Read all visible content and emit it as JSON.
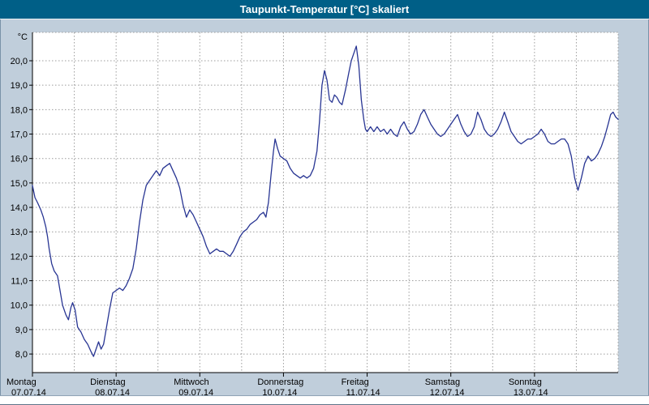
{
  "window": {
    "title": "Taupunkt-Temperatur [°C] skaliert"
  },
  "colors": {
    "titlebar": "#005f87",
    "background": "#c0cedb",
    "plot_bg": "#ffffff",
    "grid": "#9c9c9c",
    "axis": "#000000",
    "line": "#283593"
  },
  "chart_data": {
    "type": "line",
    "title": "Taupunkt-Temperatur [°C] skaliert",
    "y_unit": "°C",
    "ylim": [
      7.24,
      21.16
    ],
    "xlim_days": [
      0,
      7
    ],
    "grid": true,
    "legend": "none",
    "ytick_values": [
      8,
      9,
      10,
      11,
      12,
      13,
      14,
      15,
      16,
      17,
      18,
      19,
      20
    ],
    "ytick_labels": [
      "8,0",
      "9,0",
      "10,0",
      "11,0",
      "12,0",
      "13,0",
      "14,0",
      "15,0",
      "16,0",
      "17,0",
      "18,0",
      "19,0",
      "20,0"
    ],
    "x_axis": {
      "minor_grid_interval_days": 0.5,
      "days": [
        {
          "name": "Montag",
          "date": "07.07.14"
        },
        {
          "name": "Dienstag",
          "date": "08.07.14"
        },
        {
          "name": "Mittwoch",
          "date": "09.07.14"
        },
        {
          "name": "Donnerstag",
          "date": "10.07.14"
        },
        {
          "name": "Freitag",
          "date": "11.07.14"
        },
        {
          "name": "Samstag",
          "date": "12.07.14"
        },
        {
          "name": "Sonntag",
          "date": "13.07.14"
        }
      ]
    },
    "series": [
      {
        "name": "taupunkt-temperatur",
        "color": "#283593",
        "points": [
          [
            0.0,
            14.9
          ],
          [
            0.03,
            14.4
          ],
          [
            0.06,
            14.2
          ],
          [
            0.1,
            13.9
          ],
          [
            0.13,
            13.6
          ],
          [
            0.16,
            13.2
          ],
          [
            0.18,
            12.8
          ],
          [
            0.2,
            12.3
          ],
          [
            0.23,
            11.7
          ],
          [
            0.26,
            11.4
          ],
          [
            0.3,
            11.2
          ],
          [
            0.33,
            10.6
          ],
          [
            0.36,
            10.0
          ],
          [
            0.4,
            9.6
          ],
          [
            0.43,
            9.4
          ],
          [
            0.46,
            9.9
          ],
          [
            0.48,
            10.1
          ],
          [
            0.51,
            9.8
          ],
          [
            0.54,
            9.1
          ],
          [
            0.58,
            8.9
          ],
          [
            0.62,
            8.6
          ],
          [
            0.66,
            8.4
          ],
          [
            0.7,
            8.1
          ],
          [
            0.73,
            7.9
          ],
          [
            0.76,
            8.2
          ],
          [
            0.79,
            8.5
          ],
          [
            0.82,
            8.2
          ],
          [
            0.85,
            8.4
          ],
          [
            0.88,
            9.0
          ],
          [
            0.92,
            9.8
          ],
          [
            0.96,
            10.5
          ],
          [
            1.0,
            10.6
          ],
          [
            1.04,
            10.7
          ],
          [
            1.08,
            10.6
          ],
          [
            1.12,
            10.8
          ],
          [
            1.16,
            11.1
          ],
          [
            1.2,
            11.5
          ],
          [
            1.24,
            12.3
          ],
          [
            1.28,
            13.4
          ],
          [
            1.32,
            14.3
          ],
          [
            1.36,
            14.9
          ],
          [
            1.4,
            15.1
          ],
          [
            1.44,
            15.3
          ],
          [
            1.48,
            15.5
          ],
          [
            1.52,
            15.3
          ],
          [
            1.56,
            15.6
          ],
          [
            1.6,
            15.7
          ],
          [
            1.64,
            15.8
          ],
          [
            1.68,
            15.5
          ],
          [
            1.72,
            15.2
          ],
          [
            1.76,
            14.8
          ],
          [
            1.8,
            14.1
          ],
          [
            1.84,
            13.6
          ],
          [
            1.88,
            13.9
          ],
          [
            1.92,
            13.7
          ],
          [
            1.96,
            13.4
          ],
          [
            2.0,
            13.1
          ],
          [
            2.04,
            12.8
          ],
          [
            2.08,
            12.4
          ],
          [
            2.12,
            12.1
          ],
          [
            2.16,
            12.2
          ],
          [
            2.2,
            12.3
          ],
          [
            2.24,
            12.2
          ],
          [
            2.28,
            12.2
          ],
          [
            2.32,
            12.1
          ],
          [
            2.36,
            12.0
          ],
          [
            2.4,
            12.2
          ],
          [
            2.44,
            12.5
          ],
          [
            2.48,
            12.8
          ],
          [
            2.52,
            13.0
          ],
          [
            2.56,
            13.1
          ],
          [
            2.6,
            13.3
          ],
          [
            2.64,
            13.4
          ],
          [
            2.68,
            13.5
          ],
          [
            2.72,
            13.7
          ],
          [
            2.76,
            13.8
          ],
          [
            2.79,
            13.6
          ],
          [
            2.82,
            14.2
          ],
          [
            2.85,
            15.3
          ],
          [
            2.88,
            16.3
          ],
          [
            2.9,
            16.8
          ],
          [
            2.93,
            16.4
          ],
          [
            2.96,
            16.1
          ],
          [
            3.0,
            16.0
          ],
          [
            3.04,
            15.9
          ],
          [
            3.08,
            15.6
          ],
          [
            3.12,
            15.4
          ],
          [
            3.16,
            15.3
          ],
          [
            3.2,
            15.2
          ],
          [
            3.24,
            15.3
          ],
          [
            3.28,
            15.2
          ],
          [
            3.32,
            15.3
          ],
          [
            3.36,
            15.6
          ],
          [
            3.4,
            16.3
          ],
          [
            3.43,
            17.5
          ],
          [
            3.46,
            19.0
          ],
          [
            3.49,
            19.6
          ],
          [
            3.52,
            19.2
          ],
          [
            3.55,
            18.4
          ],
          [
            3.58,
            18.3
          ],
          [
            3.61,
            18.6
          ],
          [
            3.64,
            18.5
          ],
          [
            3.67,
            18.3
          ],
          [
            3.7,
            18.2
          ],
          [
            3.74,
            18.8
          ],
          [
            3.78,
            19.5
          ],
          [
            3.81,
            20.0
          ],
          [
            3.84,
            20.3
          ],
          [
            3.87,
            20.6
          ],
          [
            3.9,
            19.8
          ],
          [
            3.93,
            18.4
          ],
          [
            3.96,
            17.6
          ],
          [
            3.98,
            17.2
          ],
          [
            4.0,
            17.1
          ],
          [
            4.04,
            17.3
          ],
          [
            4.08,
            17.1
          ],
          [
            4.12,
            17.3
          ],
          [
            4.16,
            17.1
          ],
          [
            4.2,
            17.2
          ],
          [
            4.24,
            17.0
          ],
          [
            4.28,
            17.2
          ],
          [
            4.32,
            17.0
          ],
          [
            4.36,
            16.9
          ],
          [
            4.4,
            17.3
          ],
          [
            4.44,
            17.5
          ],
          [
            4.48,
            17.2
          ],
          [
            4.52,
            17.0
          ],
          [
            4.56,
            17.1
          ],
          [
            4.6,
            17.4
          ],
          [
            4.64,
            17.8
          ],
          [
            4.68,
            18.0
          ],
          [
            4.72,
            17.7
          ],
          [
            4.76,
            17.4
          ],
          [
            4.8,
            17.2
          ],
          [
            4.84,
            17.0
          ],
          [
            4.88,
            16.9
          ],
          [
            4.92,
            17.0
          ],
          [
            4.96,
            17.2
          ],
          [
            5.0,
            17.4
          ],
          [
            5.04,
            17.6
          ],
          [
            5.08,
            17.8
          ],
          [
            5.12,
            17.4
          ],
          [
            5.16,
            17.1
          ],
          [
            5.2,
            16.9
          ],
          [
            5.24,
            17.0
          ],
          [
            5.28,
            17.3
          ],
          [
            5.32,
            17.9
          ],
          [
            5.36,
            17.6
          ],
          [
            5.4,
            17.2
          ],
          [
            5.44,
            17.0
          ],
          [
            5.48,
            16.9
          ],
          [
            5.52,
            17.0
          ],
          [
            5.56,
            17.2
          ],
          [
            5.6,
            17.5
          ],
          [
            5.64,
            17.9
          ],
          [
            5.68,
            17.5
          ],
          [
            5.72,
            17.1
          ],
          [
            5.76,
            16.9
          ],
          [
            5.8,
            16.7
          ],
          [
            5.84,
            16.6
          ],
          [
            5.88,
            16.7
          ],
          [
            5.92,
            16.8
          ],
          [
            5.96,
            16.8
          ],
          [
            6.0,
            16.9
          ],
          [
            6.04,
            17.0
          ],
          [
            6.08,
            17.2
          ],
          [
            6.12,
            17.0
          ],
          [
            6.16,
            16.7
          ],
          [
            6.2,
            16.6
          ],
          [
            6.24,
            16.6
          ],
          [
            6.28,
            16.7
          ],
          [
            6.32,
            16.8
          ],
          [
            6.36,
            16.8
          ],
          [
            6.4,
            16.6
          ],
          [
            6.44,
            16.1
          ],
          [
            6.48,
            15.2
          ],
          [
            6.52,
            14.7
          ],
          [
            6.56,
            15.2
          ],
          [
            6.6,
            15.8
          ],
          [
            6.64,
            16.1
          ],
          [
            6.68,
            15.9
          ],
          [
            6.72,
            16.0
          ],
          [
            6.76,
            16.2
          ],
          [
            6.8,
            16.5
          ],
          [
            6.84,
            16.9
          ],
          [
            6.88,
            17.4
          ],
          [
            6.91,
            17.8
          ],
          [
            6.94,
            17.9
          ],
          [
            6.97,
            17.7
          ],
          [
            7.0,
            17.6
          ]
        ]
      }
    ]
  },
  "bottom_bar": {
    "role": "horizontal-scrollbar"
  }
}
